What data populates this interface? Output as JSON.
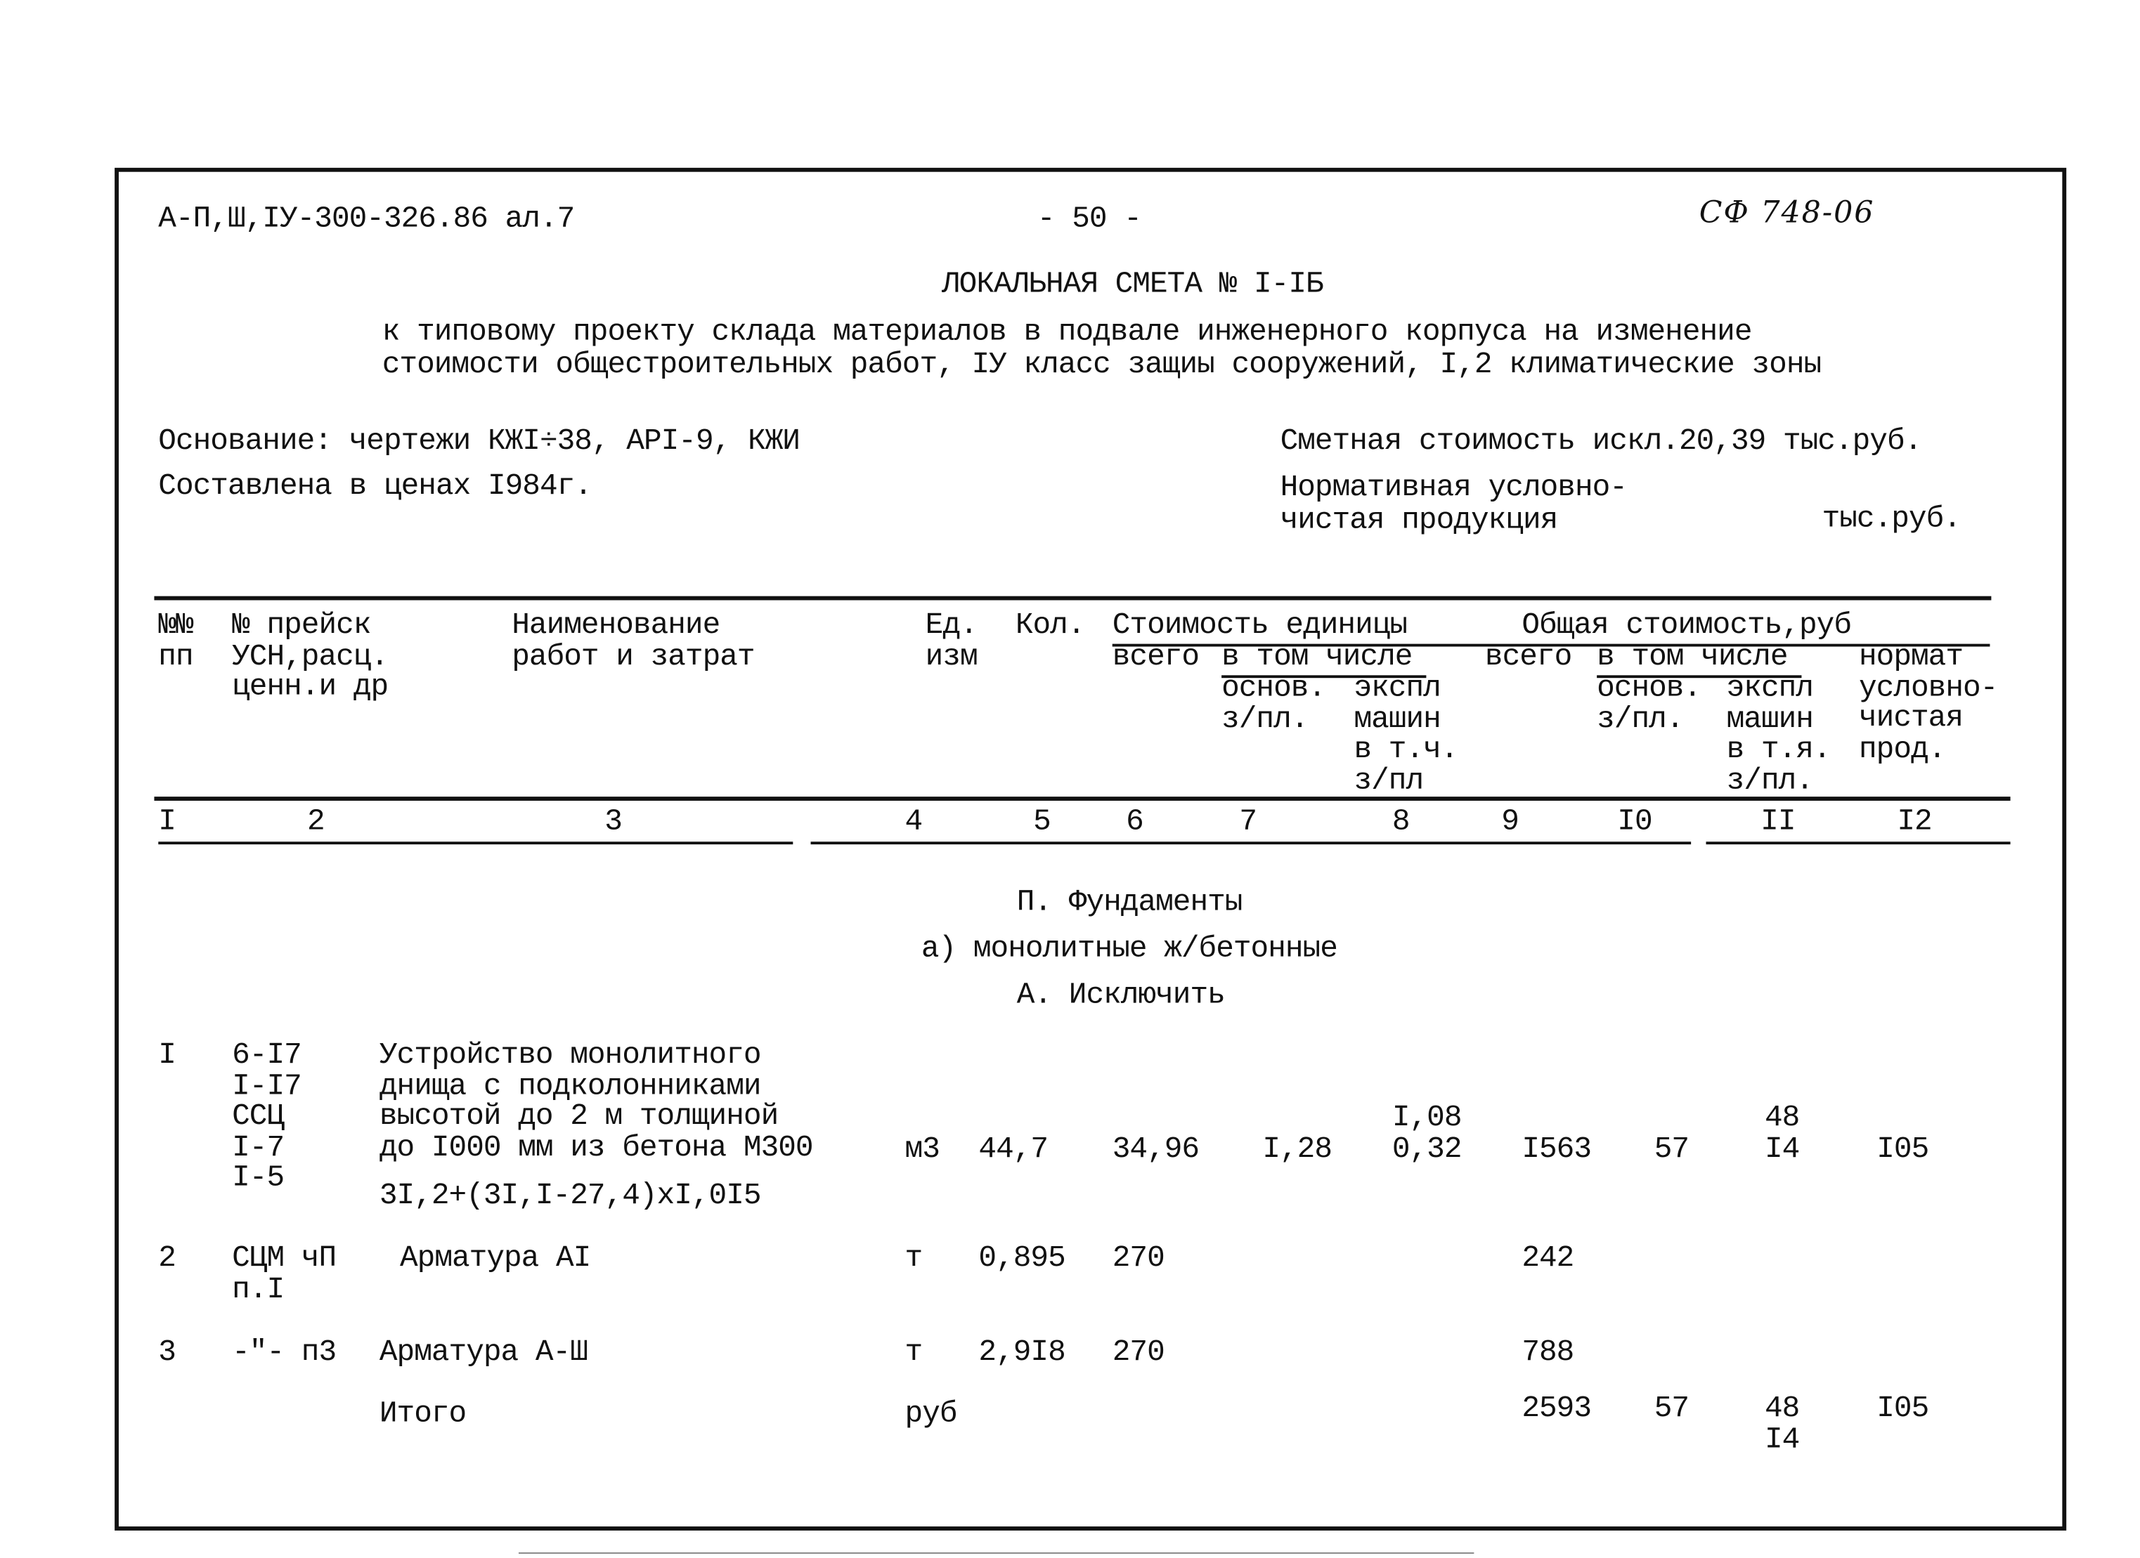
{
  "header": {
    "doc_code": "А-П,Ш,IУ-300-326.86 ал.7",
    "page_number": "- 50 -",
    "handwritten_code": "СФ 748-06"
  },
  "title": {
    "main": "ЛОКАЛЬНАЯ СМЕТА № I-IБ",
    "subtitle_line1": "к типовому проекту склада материалов в подвале инженерного корпуса на изменение",
    "subtitle_line2": "стоимости общестроительных работ, IУ класс защиы сооружений, I,2 климатические зоны"
  },
  "info": {
    "basis": "Основание: чертежи КЖI÷38, АРI-9, КЖИ",
    "prices": "Составлена в ценах I984г.",
    "estimated_cost": "Сметная стоимость искл.20,39 тыс.руб.",
    "normative_label": "Нормативная условно-\nчистая продукция",
    "normative_unit": "тыс.руб."
  },
  "table_header": {
    "col_no": "№№\nпп",
    "col_price_ref": "№ прейск\nУСН,расц.\nценн.и др",
    "col_name": "Наименование\nработ и затрат",
    "col_unit": "Ед.\nизм",
    "col_qty": "Кол.",
    "unit_cost_group": "Стоимость единицы",
    "unit_total": "всего",
    "unit_incl": "в том числе",
    "unit_wages": "основ.\nз/пл.",
    "unit_machines": "экспл\nмашин\nв т.ч.\nз/пл",
    "total_cost_group": "Общая стоимость,руб",
    "total_total": "всего",
    "total_incl": "в том числе",
    "total_wages": "основ.\nз/пл.",
    "total_machines": "экспл\nмашин\nв т.я.\nз/пл.",
    "total_normative": "нормат\nусловно-\nчистая\nпрод."
  },
  "column_numbers": [
    "I",
    "2",
    "3",
    "4",
    "5",
    "6",
    "7",
    "8",
    "9",
    "I0",
    "II",
    "I2"
  ],
  "sections": {
    "section": "П. Фундаменты",
    "subsection": "а) монолитные ж/бетонные",
    "action": "А. Исключить"
  },
  "rows": [
    {
      "no": "I",
      "ref": "6-I7\nI-I7\nССЦ\nI-7\nI-5",
      "name": "Устройство монолитного\nднища с подколонниками\nвысотой до 2 м толщиной\nдо I000 мм из бетона М300",
      "formula": "3I,2+(3I,I-27,4)хI,0I5",
      "unit": "м3",
      "qty": "44,7",
      "unit_total": "34,96",
      "unit_wages": "I,28",
      "unit_machines": "I,08\n0,32",
      "total": "I563",
      "total_wages": "57",
      "total_machines": "48\nI4",
      "total_normative": "I05"
    },
    {
      "no": "2",
      "ref": "СЦМ чП\nп.I",
      "name": "Арматура АI",
      "unit": "т",
      "qty": "0,895",
      "unit_total": "270",
      "total": "242"
    },
    {
      "no": "3",
      "ref": "-\"- п3",
      "name": "Арматура А-Ш",
      "unit": "т",
      "qty": "2,9I8",
      "unit_total": "270",
      "total": "788"
    }
  ],
  "total_row": {
    "label": "Итого",
    "unit": "руб",
    "total": "2593",
    "total_wages": "57",
    "total_machines": "48\nI4",
    "total_normative": "I05"
  }
}
